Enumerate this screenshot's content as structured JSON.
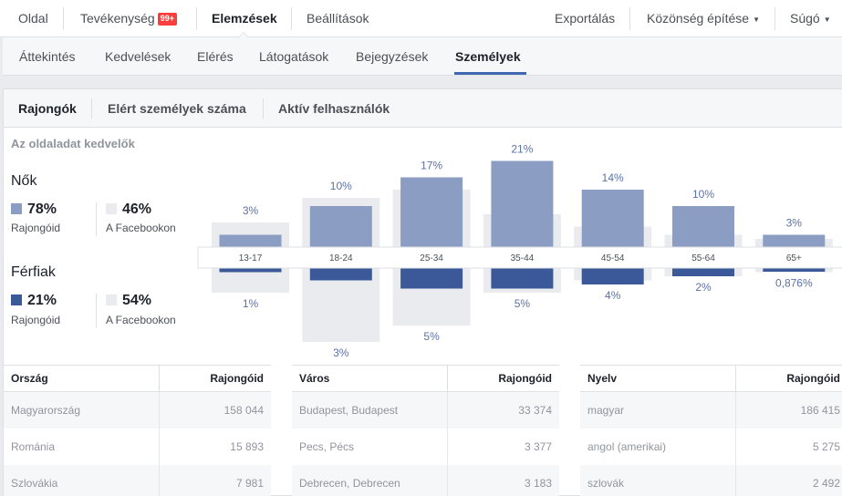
{
  "topnav": {
    "items": [
      {
        "label": "Oldal"
      },
      {
        "label": "Tevékenység",
        "badge": "99+"
      },
      {
        "label": "Elemzések"
      },
      {
        "label": "Beállítások"
      },
      {
        "label": "Exportálás"
      },
      {
        "label": "Közönség építése"
      },
      {
        "label": "Súgó"
      }
    ]
  },
  "subnav": {
    "tabs": [
      {
        "label": "Áttekintés"
      },
      {
        "label": "Kedvelések"
      },
      {
        "label": "Elérés"
      },
      {
        "label": "Látogatások"
      },
      {
        "label": "Bejegyzések"
      },
      {
        "label": "Személyek"
      }
    ]
  },
  "peopleTabs": [
    {
      "label": "Rajongók"
    },
    {
      "label": "Elért személyek száma"
    },
    {
      "label": "Aktív felhasználók"
    }
  ],
  "sectionTitle": "Az oldaladat kedvelők",
  "women": {
    "title": "Nők",
    "fans_pct": "78%",
    "fans_label": "Rajongóid",
    "fb_pct": "46%",
    "fb_label": "A Facebookon"
  },
  "men": {
    "title": "Férfiak",
    "fans_pct": "21%",
    "fans_label": "Rajongóid",
    "fb_pct": "54%",
    "fb_label": "A Facebookon"
  },
  "colors": {
    "women": "#8b9dc3",
    "men": "#3b5998",
    "facebook": "#e9ebee"
  },
  "chart_data": {
    "type": "bar",
    "categories": [
      "13-17",
      "18-24",
      "25-34",
      "35-44",
      "45-54",
      "55-64",
      "65+"
    ],
    "series": [
      {
        "name": "Nők",
        "values": [
          3,
          10,
          17,
          21,
          14,
          10,
          3
        ],
        "labels": [
          "3%",
          "10%",
          "17%",
          "21%",
          "14%",
          "10%",
          "3%"
        ]
      },
      {
        "name": "Férfiak",
        "values": [
          1,
          3,
          5,
          5,
          4,
          2,
          0.876
        ],
        "labels": [
          "1%",
          "3%",
          "5%",
          "5%",
          "4%",
          "2%",
          "0,876%"
        ]
      }
    ],
    "facebook_women": [
      6,
      12,
      14,
      8,
      5,
      3,
      2
    ],
    "facebook_men": [
      6,
      18,
      14,
      6,
      3,
      2,
      1
    ],
    "ylim": [
      0,
      22
    ]
  },
  "tables": [
    {
      "header": [
        "Ország",
        "Rajongóid"
      ],
      "rows": [
        [
          "Magyarország",
          "158 044"
        ],
        [
          "Románia",
          "15 893"
        ],
        [
          "Szlovákia",
          "7 981"
        ]
      ]
    },
    {
      "header": [
        "Város",
        "Rajongóid"
      ],
      "rows": [
        [
          "Budapest, Budapest",
          "33 374"
        ],
        [
          "Pecs, Pécs",
          "3 377"
        ],
        [
          "Debrecen, Debrecen",
          "3 183"
        ]
      ]
    },
    {
      "header": [
        "Nyelv",
        "Rajongóid"
      ],
      "rows": [
        [
          "magyar",
          "186 415"
        ],
        [
          "angol (amerikai)",
          "5 275"
        ],
        [
          "szlovák",
          "2 492"
        ]
      ]
    }
  ]
}
